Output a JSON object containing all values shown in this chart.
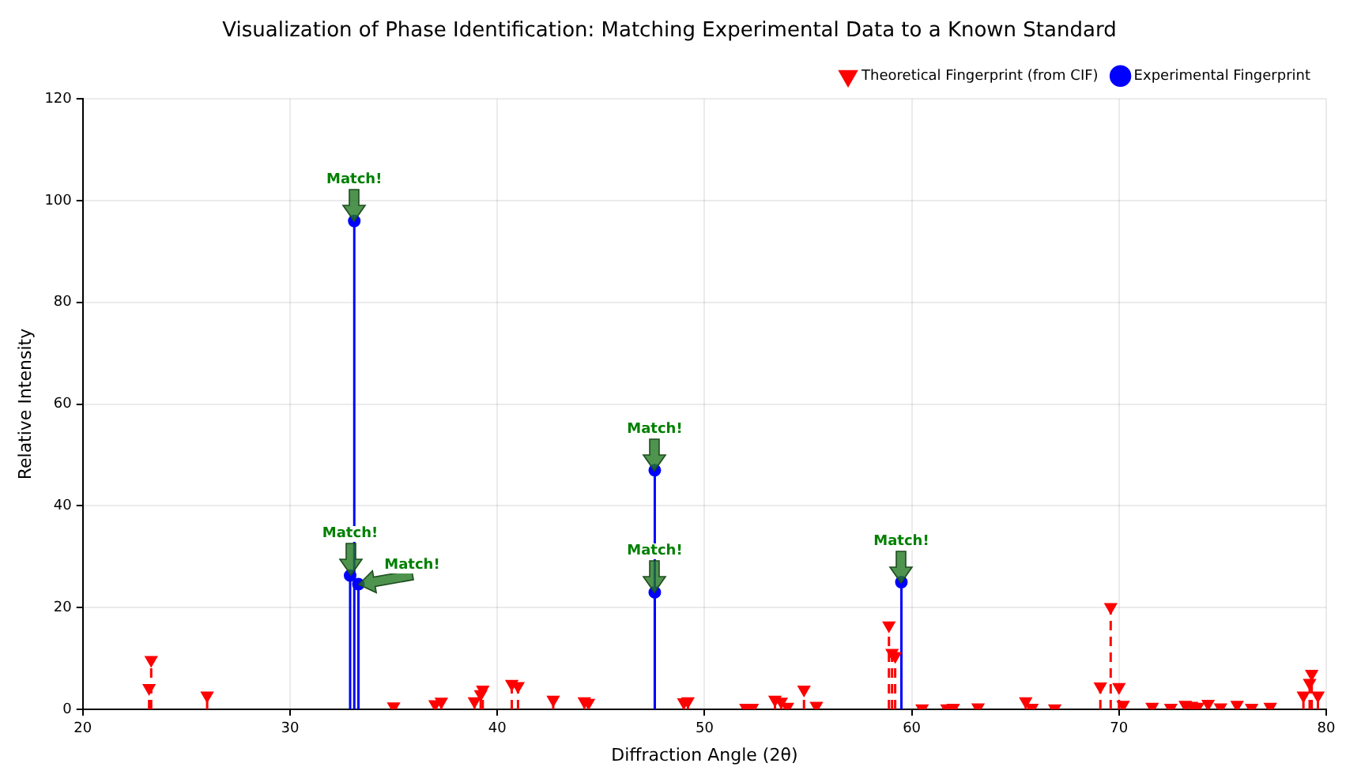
{
  "chart_data": {
    "type": "lollipop",
    "title": "Visualization of Phase Identification: Matching Experimental Data to a Known Standard",
    "xlabel": "Diffraction Angle (2θ)",
    "ylabel": "Relative Intensity",
    "xlim": [
      20,
      80
    ],
    "ylim": [
      0,
      120
    ],
    "xticks": [
      20,
      30,
      40,
      50,
      60,
      70,
      80
    ],
    "yticks": [
      0,
      20,
      40,
      60,
      80,
      100,
      120
    ],
    "grid": true,
    "legend": "top right",
    "series": [
      {
        "name": "Theoretical Fingerprint (from CIF)",
        "color": "#ff0000",
        "line_style": "dashed",
        "marker": "triangle",
        "x": [
          23.2,
          23.3,
          26.0,
          32.9,
          33.2,
          35.0,
          37.0,
          37.3,
          38.9,
          39.2,
          39.3,
          40.7,
          41.0,
          42.7,
          44.2,
          44.4,
          47.6,
          49.0,
          49.2,
          52.0,
          52.3,
          53.4,
          53.7,
          54.0,
          54.8,
          55.4,
          58.9,
          59.05,
          59.2,
          60.5,
          61.7,
          62.0,
          63.2,
          65.5,
          65.8,
          66.9,
          69.1,
          69.6,
          70.0,
          70.2,
          71.6,
          72.5,
          73.2,
          73.5,
          73.8,
          74.3,
          74.9,
          75.7,
          76.4,
          77.3,
          78.9,
          79.2,
          79.3,
          79.6
        ],
        "values": [
          4.2,
          9.7,
          2.7,
          null,
          null,
          0.6,
          1.0,
          1.5,
          1.6,
          3.0,
          3.9,
          5.0,
          4.6,
          1.9,
          1.6,
          1.3,
          null,
          1.4,
          1.6,
          0.3,
          0.3,
          1.9,
          1.5,
          0.5,
          3.9,
          0.7,
          16.5,
          11.1,
          10.5,
          0.2,
          0.2,
          0.3,
          0.4,
          1.6,
          0.3,
          0.2,
          4.5,
          20.1,
          4.4,
          0.9,
          0.5,
          0.3,
          0.9,
          0.7,
          0.5,
          1.1,
          0.4,
          0.9,
          0.3,
          0.5,
          2.7,
          5.2,
          7.0,
          2.7
        ]
      },
      {
        "name": "Experimental Fingerprint",
        "color": "#0000ff",
        "line_style": "solid",
        "marker": "circle",
        "x": [
          32.9,
          33.1,
          33.3,
          47.6,
          47.6,
          59.5
        ],
        "values": [
          26.3,
          96,
          24.6,
          23,
          47,
          25
        ]
      }
    ],
    "annotations": [
      {
        "text": "Match!",
        "x": 33.1,
        "y": 96
      },
      {
        "text": "Match!",
        "x": 32.9,
        "y": 26.3
      },
      {
        "text": "Match!",
        "x": 33.3,
        "y": 24.6
      },
      {
        "text": "Match!",
        "x": 47.6,
        "y": 47
      },
      {
        "text": "Match!",
        "x": 47.6,
        "y": 23
      },
      {
        "text": "Match!",
        "x": 59.5,
        "y": 25
      }
    ]
  }
}
